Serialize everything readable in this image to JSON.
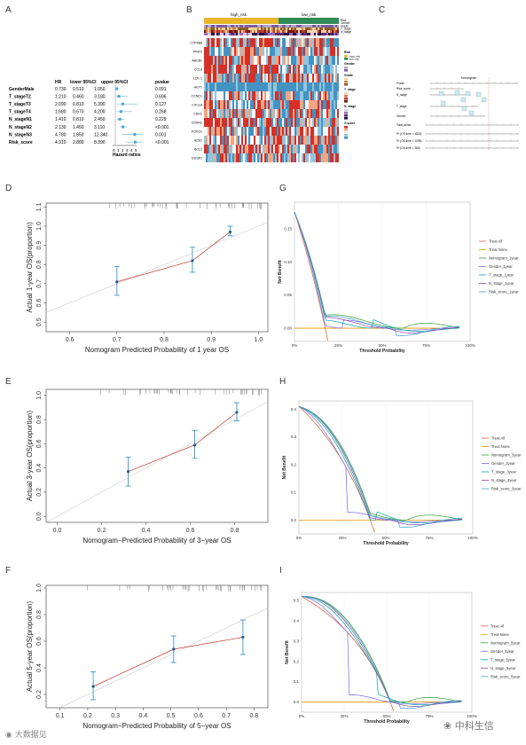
{
  "panels": {
    "A": "A",
    "B": "B",
    "C": "C",
    "D": "D",
    "E": "E",
    "F": "F",
    "G": "G",
    "H": "H",
    "I": "I"
  },
  "forest": {
    "headers": [
      "HR",
      "lower 95%CI",
      "upper 95%CI",
      "pvalue"
    ],
    "xlabel": "Hazard ratios",
    "ticks": [
      "0",
      "1",
      "2",
      "3",
      "4",
      "5"
    ],
    "rows": [
      {
        "name": "GenderMale",
        "hr": "0.730",
        "lo": "0.510",
        "hi": "1.050",
        "p": "0.091",
        "hrv": 0.73,
        "lov": 0.51,
        "hiv": 1.05
      },
      {
        "name": "T_stageT2",
        "hr": "1.210",
        "lo": "0.460",
        "hi": "3.180",
        "p": "0.696",
        "hrv": 1.21,
        "lov": 0.46,
        "hiv": 3.18
      },
      {
        "name": "T_stageT3",
        "hr": "2.090",
        "lo": "0.810",
        "hi": "5.390",
        "p": "0.127",
        "hrv": 2.09,
        "lov": 0.81,
        "hiv": 5.39
      },
      {
        "name": "T_stageT4",
        "hr": "1.680",
        "lo": "0.670",
        "hi": "4.200",
        "p": "0.268",
        "hrv": 1.68,
        "lov": 0.67,
        "hiv": 4.2
      },
      {
        "name": "N_stageN1",
        "hr": "1.410",
        "lo": "0.810",
        "hi": "2.450",
        "p": "0.229",
        "hrv": 1.41,
        "lov": 0.81,
        "hiv": 2.45
      },
      {
        "name": "N_stageN2",
        "hr": "2.130",
        "lo": "1.450",
        "hi": "3.110",
        "p": "<0.001",
        "hrv": 2.13,
        "lov": 1.45,
        "hiv": 3.11
      },
      {
        "name": "N_stageN3",
        "hr": "4.780",
        "lo": "1.850",
        "hi": "12.340",
        "p": "0.001",
        "hrv": 4.78,
        "lov": 1.85,
        "hiv": 12.34
      },
      {
        "name": "Risk_score",
        "hr": "4.910",
        "lo": "2.880",
        "hi": "8.390",
        "p": "<0.001",
        "hrv": 4.91,
        "lov": 2.88,
        "hiv": 8.39
      }
    ]
  },
  "heatmap": {
    "groups": [
      "high_risk",
      "low_risk"
    ],
    "genes": [
      "CYP4B8",
      "PRKG",
      "ABCB1",
      "CCL8",
      "LCK-1",
      "HEY1",
      "CCND1",
      "CXCL8",
      "CDH1",
      "CDKN2",
      "FOXO1",
      "ACE2",
      "BCL2",
      "DUSP1"
    ],
    "annot_labels": [
      "Risk",
      "Gender",
      "Grade",
      "T_stage",
      "N_stage"
    ],
    "legend_titles": [
      "Risk",
      "Gender",
      "Grade",
      "T_stage",
      "N_stage",
      "Z-score"
    ],
    "risk_items": [
      "high_risk",
      "low_risk"
    ]
  },
  "nomogram": {
    "title": "Nomogram",
    "rows": [
      "Points",
      "Risk_score",
      "N_stage",
      "T_stage",
      "Gender",
      "Total points",
      "Pr (OS.time < 1825)",
      "Pr (OS.time < 1095)",
      "Pr (OS.time < 365)"
    ]
  },
  "chart_data": [
    {
      "type": "scatter",
      "xlabel": "Nomogram Predicted Probability of 1 year OS",
      "ylabel": "Actual 1-year OS(proportion)",
      "xlim": [
        0.55,
        1.02
      ],
      "ylim": [
        0.45,
        1.12
      ],
      "xticks": [
        "0.6",
        "0.7",
        "0.8",
        "0.9",
        "1.0"
      ],
      "yticks": [
        "0.5",
        "0.6",
        "0.7",
        "0.8",
        "0.9",
        "1.0",
        "1.1"
      ],
      "points": [
        {
          "x": 0.7,
          "y": 0.71,
          "lo": 0.64,
          "hi": 0.79
        },
        {
          "x": 0.86,
          "y": 0.82,
          "lo": 0.76,
          "hi": 0.89
        },
        {
          "x": 0.94,
          "y": 0.97,
          "lo": 0.95,
          "hi": 1.0
        }
      ]
    },
    {
      "type": "line",
      "ylabel": "Net Benefit",
      "xlabel": "Threshold Probability",
      "xticks": [
        "0%",
        "25%",
        "50%",
        "75%",
        "100%"
      ],
      "yticks": [
        "0.00",
        "0.05",
        "0.10",
        "0.15"
      ],
      "ylim": [
        -0.02,
        0.19
      ],
      "legend": [
        "Treat All",
        "Treat None",
        "Nomogram_1year",
        "Gender_1year",
        "T_stage_1year",
        "N_stage_1year",
        "Risk_score_1year"
      ]
    },
    {
      "type": "scatter",
      "xlabel": "Nomogram−Predicted Probability of 3−year OS",
      "ylabel": "Actual 3-year OS(proportion)",
      "xlim": [
        -0.05,
        0.95
      ],
      "ylim": [
        -0.05,
        1.05
      ],
      "xticks": [
        "0.0",
        "0.2",
        "0.4",
        "0.6",
        "0.8"
      ],
      "yticks": [
        "0.0",
        "0.2",
        "0.4",
        "0.6",
        "0.8",
        "1.0"
      ],
      "points": [
        {
          "x": 0.32,
          "y": 0.37,
          "lo": 0.25,
          "hi": 0.49
        },
        {
          "x": 0.62,
          "y": 0.59,
          "lo": 0.48,
          "hi": 0.71
        },
        {
          "x": 0.81,
          "y": 0.86,
          "lo": 0.79,
          "hi": 0.94
        }
      ]
    },
    {
      "type": "line",
      "ylabel": "Net Benefit",
      "xlabel": "Threshold Probability",
      "xticks": [
        "0%",
        "25%",
        "50%",
        "75%",
        "100%"
      ],
      "yticks": [
        "0.0",
        "0.1",
        "0.2",
        "0.3",
        "0.4"
      ],
      "ylim": [
        -0.05,
        0.43
      ],
      "legend": [
        "Treat All",
        "Treat None",
        "Nomogram_3year",
        "Gender_3year",
        "T_stage_3year",
        "N_stage_3year",
        "Risk_score_3year"
      ]
    },
    {
      "type": "scatter",
      "xlabel": "Nomogram−Predicted Probability of 5−year OS",
      "ylabel": "Actual 5-year OS(proportion)",
      "xlim": [
        0.05,
        0.85
      ],
      "ylim": [
        0.1,
        1.02
      ],
      "xticks": [
        "0.1",
        "0.2",
        "0.3",
        "0.4",
        "0.5",
        "0.6",
        "0.7",
        "0.8"
      ],
      "yticks": [
        "0.2",
        "0.4",
        "0.6",
        "0.8",
        "1.0"
      ],
      "points": [
        {
          "x": 0.22,
          "y": 0.26,
          "lo": 0.16,
          "hi": 0.37
        },
        {
          "x": 0.51,
          "y": 0.54,
          "lo": 0.44,
          "hi": 0.64
        },
        {
          "x": 0.76,
          "y": 0.63,
          "lo": 0.5,
          "hi": 0.76
        }
      ]
    },
    {
      "type": "line",
      "ylabel": "Net Benefit",
      "xlabel": "Threshold Probability",
      "xticks": [
        "0%",
        "25%",
        "50%",
        "75%",
        "100%"
      ],
      "yticks": [
        "0.0",
        "0.1",
        "0.2",
        "0.3",
        "0.4",
        "0.5"
      ],
      "ylim": [
        -0.05,
        0.54
      ],
      "legend": [
        "Treat All",
        "Treat None",
        "Nomogram_5year",
        "Gender_5year",
        "T_stage_5year",
        "N_stage_5year",
        "Risk_score_5year"
      ]
    }
  ],
  "watermark_left": "大数据见",
  "watermark_right": "中科生信",
  "colors": {
    "calib_line": "#c0392b",
    "point": "#1f5f8b",
    "errbar": "#4aa3d8",
    "treatall": "#e0633a",
    "treatnone": "#e09a00",
    "nomogram": "#2ca02c",
    "gender": "#7b68ee",
    "tstage": "#00a6a6",
    "nstage": "#8e44ad",
    "risk": "#3aa0c8"
  }
}
